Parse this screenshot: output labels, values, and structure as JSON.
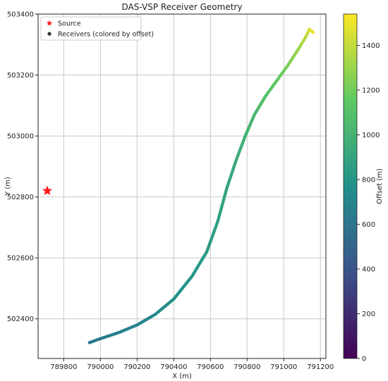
{
  "chart_data": {
    "type": "scatter",
    "title": "DAS-VSP Receiver Geometry",
    "xlabel": "X (m)",
    "ylabel": "Y (m)",
    "xlim": [
      789660,
      791230
    ],
    "ylim": [
      502270,
      503400
    ],
    "xticks": [
      789800,
      790000,
      790200,
      790400,
      790600,
      790800,
      791000,
      791200
    ],
    "yticks": [
      502400,
      502600,
      502800,
      503000,
      503200,
      503400
    ],
    "grid": true,
    "legend_position": "top-left",
    "legend": [
      {
        "label": "Source",
        "marker": "star",
        "color": "#ff1a1a"
      },
      {
        "label": "Receivers (colored by offset)",
        "marker": "circle",
        "color": "#333333"
      }
    ],
    "series": [
      {
        "name": "Source",
        "type": "point",
        "marker": "star",
        "color": "#ff1a1a",
        "points": [
          [
            789710,
            502820
          ]
        ]
      },
      {
        "name": "Receivers (colored by offset)",
        "type": "path",
        "colormap": "viridis",
        "points": [
          [
            789940,
            502322,
            610
          ],
          [
            790000,
            502335,
            630
          ],
          [
            790100,
            502355,
            660
          ],
          [
            790200,
            502380,
            690
          ],
          [
            790300,
            502415,
            720
          ],
          [
            790400,
            502465,
            755
          ],
          [
            790500,
            502540,
            795
          ],
          [
            790580,
            502620,
            830
          ],
          [
            790640,
            502720,
            865
          ],
          [
            790690,
            502830,
            900
          ],
          [
            790740,
            502920,
            940
          ],
          [
            790790,
            503000,
            980
          ],
          [
            790840,
            503070,
            1030
          ],
          [
            790900,
            503130,
            1090
          ],
          [
            790960,
            503180,
            1150
          ],
          [
            791020,
            503230,
            1220
          ],
          [
            791080,
            503285,
            1300
          ],
          [
            791120,
            503325,
            1380
          ],
          [
            791140,
            503350,
            1440
          ],
          [
            791160,
            503340,
            1500
          ]
        ]
      }
    ],
    "colorbar": {
      "label": "Offset (m)",
      "colormap": "viridis",
      "min": 0,
      "max": 1540,
      "ticks": [
        0,
        200,
        400,
        600,
        800,
        1000,
        1200,
        1400
      ]
    }
  }
}
